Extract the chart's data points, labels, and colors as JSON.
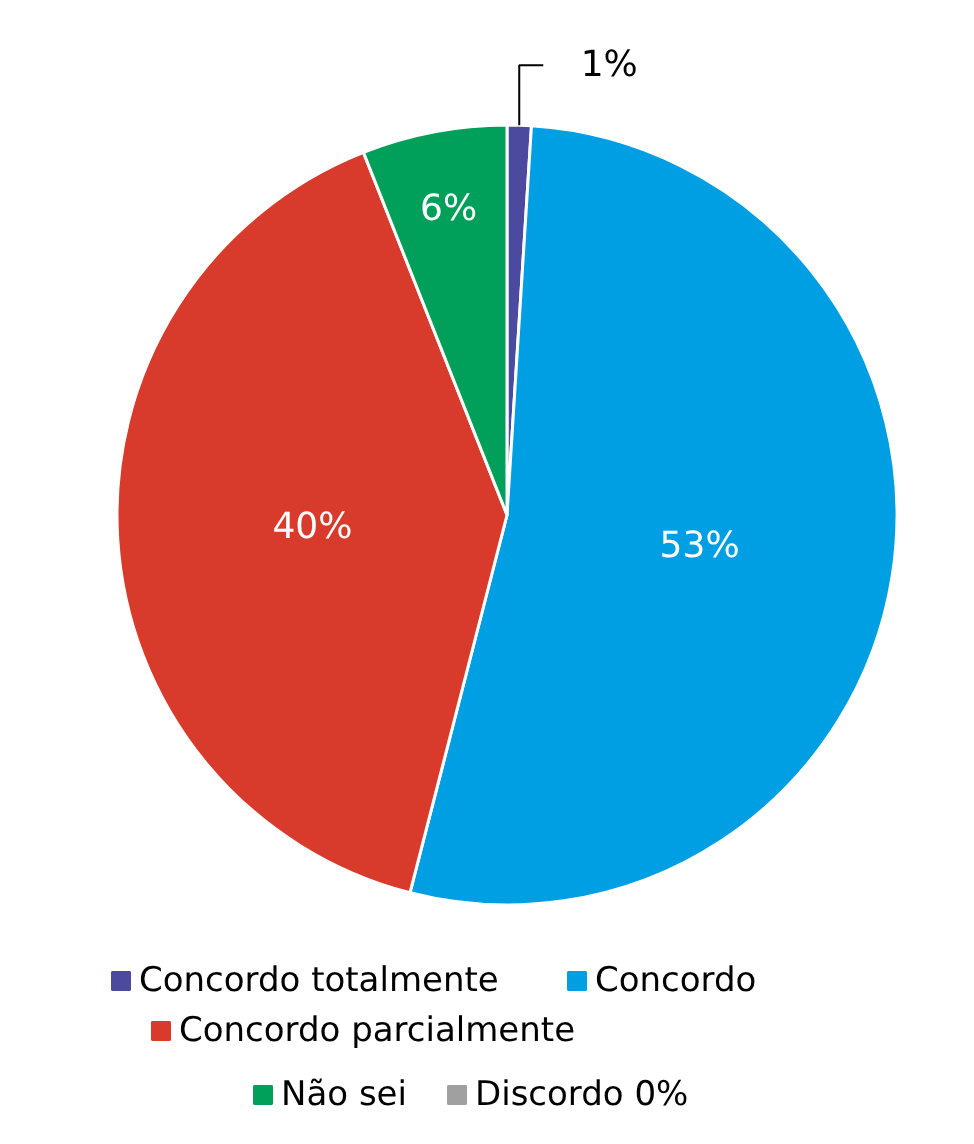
{
  "chart_data": {
    "type": "pie",
    "categories": [
      "Concordo totalmente",
      "Concordo",
      "Concordo parcialmente",
      "Não sei",
      "Discordo 0%"
    ],
    "values": [
      1,
      53,
      40,
      6,
      0
    ],
    "colors": [
      "#4b4a9e",
      "#009fe3",
      "#d83a2b",
      "#00a05a",
      "#a0a0a0"
    ],
    "value_labels": [
      "1%",
      "53%",
      "40%",
      "6%",
      null
    ],
    "legend": "bottom"
  }
}
